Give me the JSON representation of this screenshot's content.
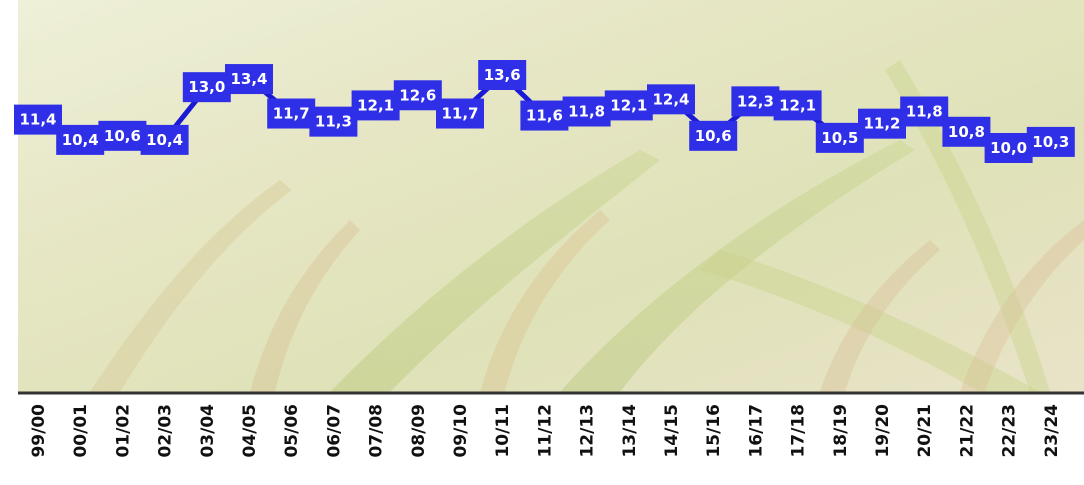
{
  "chart_data": {
    "type": "line",
    "title": "",
    "xlabel": "",
    "ylabel": "",
    "categories": [
      "99/00",
      "00/01",
      "01/02",
      "02/03",
      "03/04",
      "04/05",
      "05/06",
      "06/07",
      "07/08",
      "08/09",
      "09/10",
      "10/11",
      "11/12",
      "12/13",
      "13/14",
      "14/15",
      "15/16",
      "16/17",
      "17/18",
      "18/19",
      "19/20",
      "20/21",
      "21/22",
      "22/23",
      "23/24"
    ],
    "values": [
      11.4,
      10.4,
      10.6,
      10.4,
      13.0,
      13.4,
      11.7,
      11.3,
      12.1,
      12.6,
      11.7,
      13.6,
      11.6,
      11.8,
      12.1,
      12.4,
      10.6,
      12.3,
      12.1,
      10.5,
      11.2,
      11.8,
      10.8,
      10.0,
      10.3
    ],
    "data_labels": [
      "11,4",
      "10,4",
      "10,6",
      "10,4",
      "13,0",
      "13,4",
      "11,7",
      "11,3",
      "12,1",
      "12,6",
      "11,7",
      "13,6",
      "11,6",
      "11,8",
      "12,1",
      "12,4",
      "10,6",
      "12,3",
      "12,1",
      "10,5",
      "11,2",
      "11,8",
      "10,8",
      "10,0",
      "10,3"
    ],
    "grid": false,
    "legend": "none",
    "background": "rice-field-photo",
    "colors": {
      "line": "#1a1ad6",
      "label_box": "#2f2fe8",
      "label_text": "#ffffff",
      "axis": "#333333"
    }
  }
}
